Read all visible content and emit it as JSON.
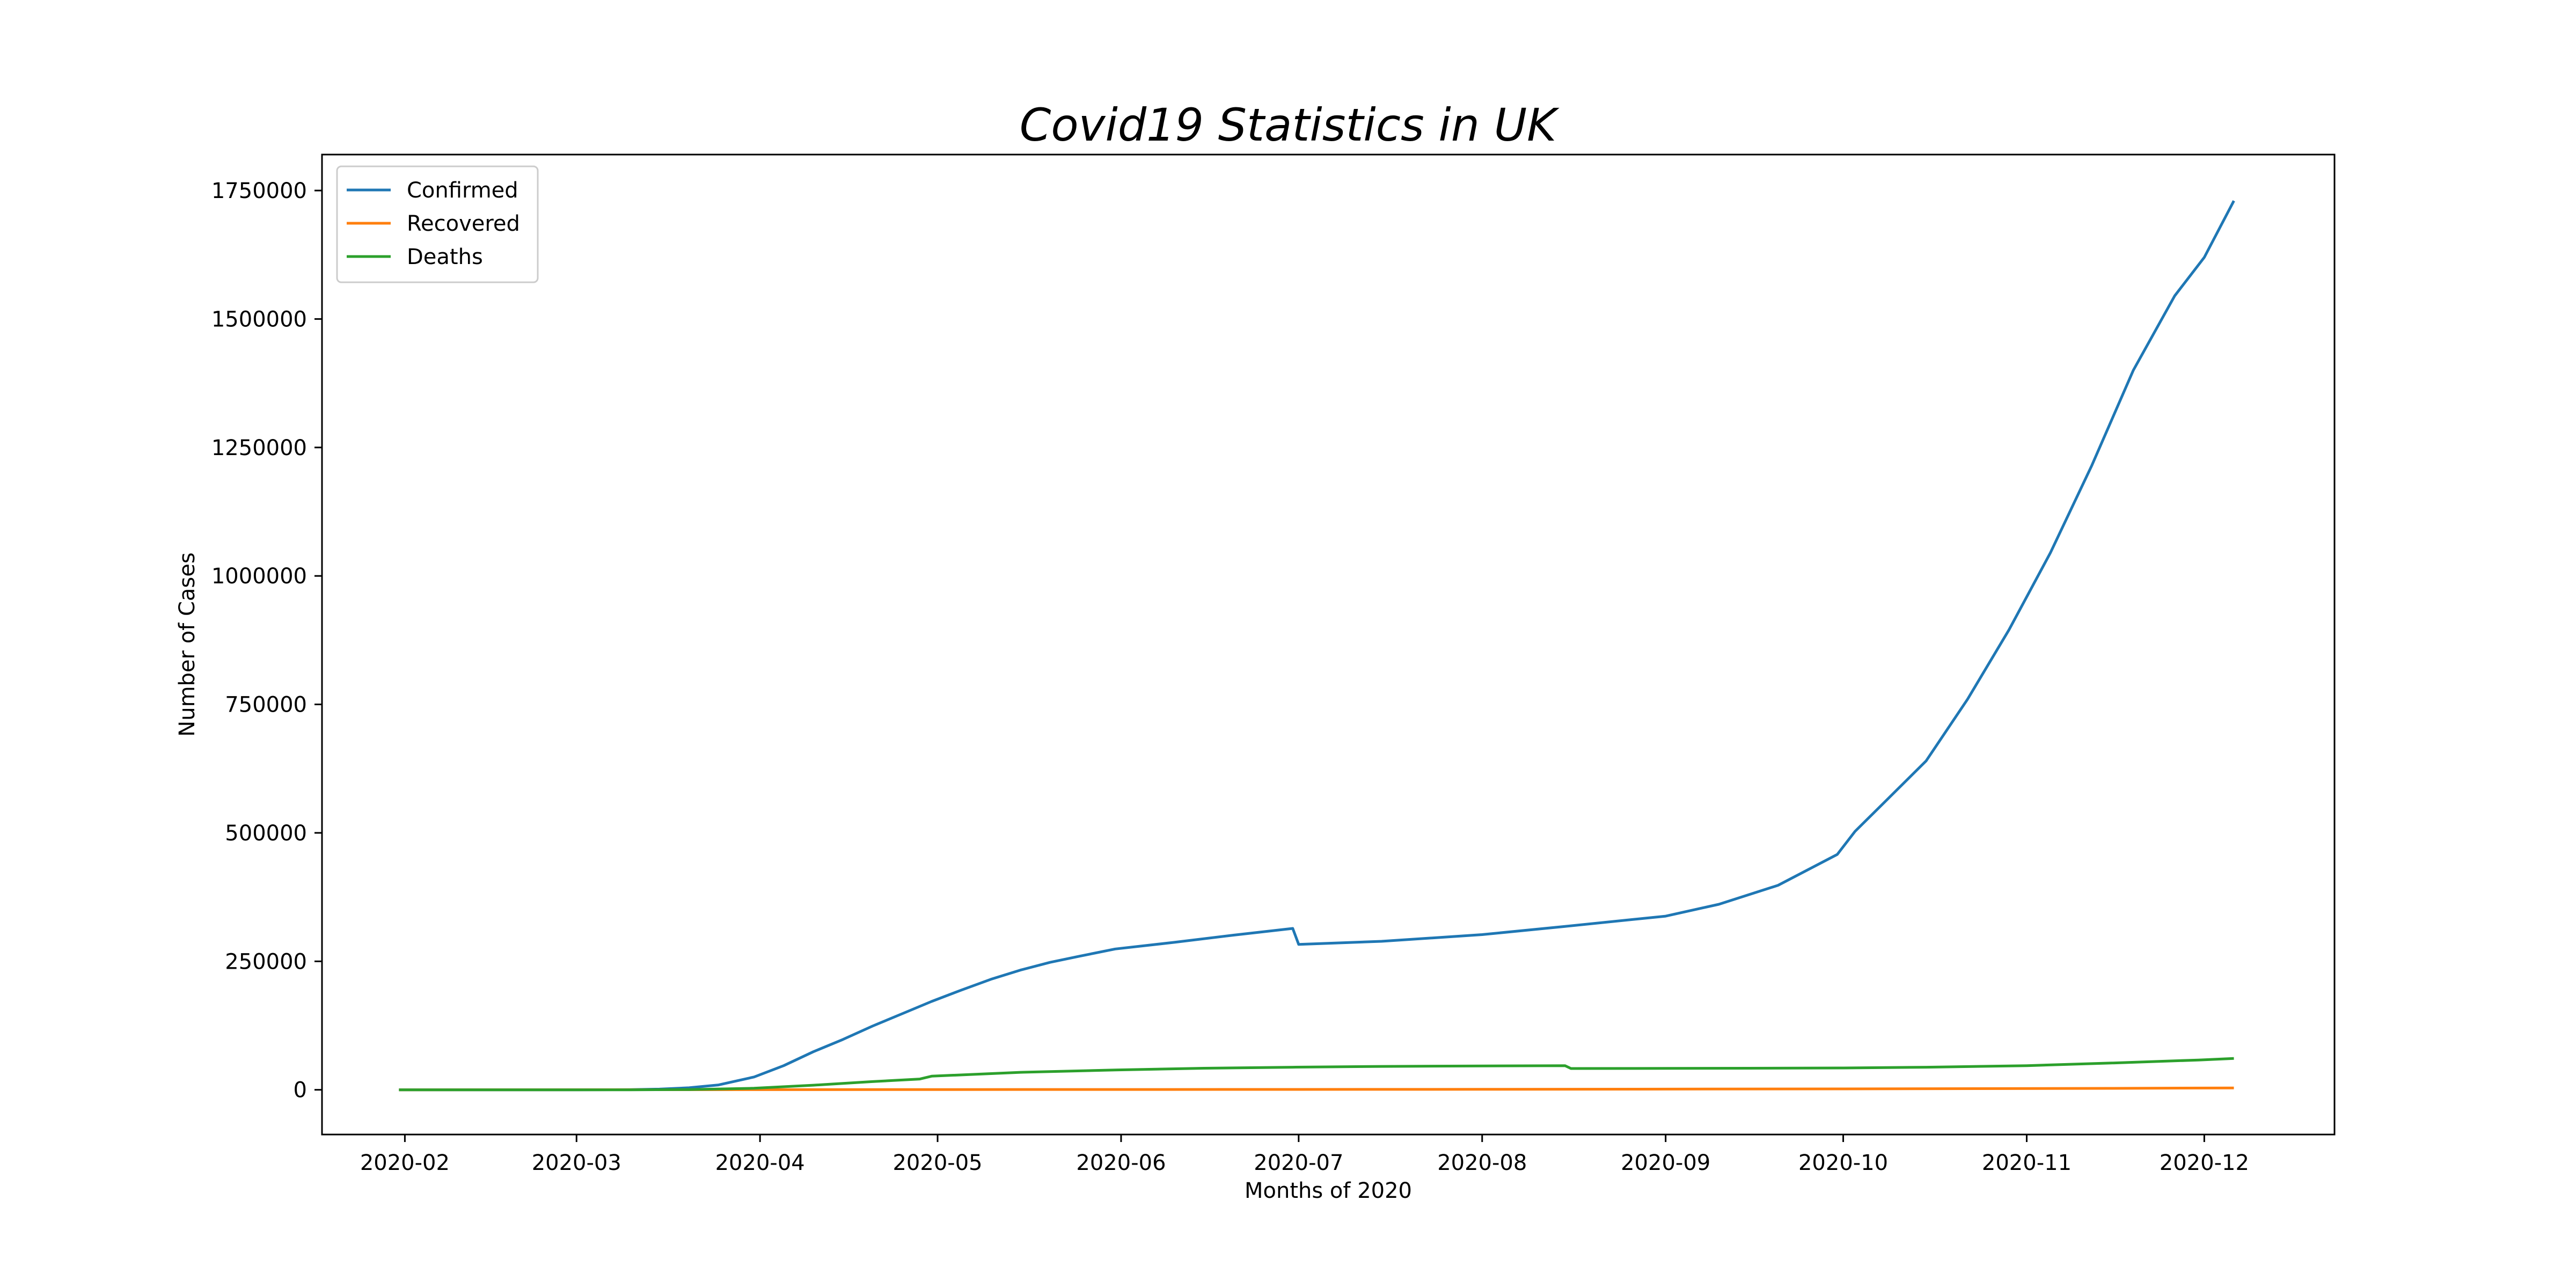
{
  "chart_data": {
    "type": "line",
    "title": "Covid19 Statistics in UK",
    "xlabel": "Months of 2020",
    "ylabel": "Number of Cases",
    "x_ticks": [
      "2020-02",
      "2020-03",
      "2020-04",
      "2020-05",
      "2020-06",
      "2020-07",
      "2020-08",
      "2020-09",
      "2020-10",
      "2020-11",
      "2020-12"
    ],
    "y_ticks": [
      0,
      250000,
      500000,
      750000,
      1000000,
      1250000,
      1500000,
      1750000
    ],
    "xlim": [
      "2020-01-18",
      "2020-12-23"
    ],
    "ylim": [
      -87000,
      1820000
    ],
    "grid": false,
    "legend": "upper-left",
    "series": [
      {
        "name": "Confirmed",
        "color": "#1f77b4",
        "points": [
          [
            "2020-01-31",
            0
          ],
          [
            "2020-03-01",
            0
          ],
          [
            "2020-03-10",
            300
          ],
          [
            "2020-03-15",
            1400
          ],
          [
            "2020-03-20",
            4000
          ],
          [
            "2020-03-25",
            9500
          ],
          [
            "2020-03-31",
            25000
          ],
          [
            "2020-04-05",
            47000
          ],
          [
            "2020-04-10",
            74000
          ],
          [
            "2020-04-15",
            98000
          ],
          [
            "2020-04-20",
            124000
          ],
          [
            "2020-04-25",
            148000
          ],
          [
            "2020-04-30",
            172000
          ],
          [
            "2020-05-05",
            194000
          ],
          [
            "2020-05-10",
            215000
          ],
          [
            "2020-05-15",
            233000
          ],
          [
            "2020-05-20",
            248000
          ],
          [
            "2020-05-25",
            260000
          ],
          [
            "2020-05-31",
            274000
          ],
          [
            "2020-06-10",
            287000
          ],
          [
            "2020-06-20",
            301000
          ],
          [
            "2020-06-30",
            314000
          ],
          [
            "2020-07-01",
            283000
          ],
          [
            "2020-07-15",
            289000
          ],
          [
            "2020-08-01",
            302000
          ],
          [
            "2020-08-15",
            318000
          ],
          [
            "2020-09-01",
            338000
          ],
          [
            "2020-09-10",
            361000
          ],
          [
            "2020-09-20",
            398000
          ],
          [
            "2020-09-30",
            458000
          ],
          [
            "2020-10-03",
            503000
          ],
          [
            "2020-10-08",
            560000
          ],
          [
            "2020-10-15",
            640000
          ],
          [
            "2020-10-22",
            760000
          ],
          [
            "2020-10-29",
            895000
          ],
          [
            "2020-11-05",
            1045000
          ],
          [
            "2020-11-12",
            1215000
          ],
          [
            "2020-11-19",
            1400000
          ],
          [
            "2020-11-26",
            1545000
          ],
          [
            "2020-12-01",
            1620000
          ],
          [
            "2020-12-06",
            1730000
          ]
        ]
      },
      {
        "name": "Recovered",
        "color": "#ff7f0e",
        "points": [
          [
            "2020-01-31",
            0
          ],
          [
            "2020-04-01",
            300
          ],
          [
            "2020-06-01",
            600
          ],
          [
            "2020-08-01",
            900
          ],
          [
            "2020-10-01",
            1800
          ],
          [
            "2020-11-15",
            2800
          ],
          [
            "2020-12-06",
            3600
          ]
        ]
      },
      {
        "name": "Deaths",
        "color": "#2ca02c",
        "points": [
          [
            "2020-01-31",
            0
          ],
          [
            "2020-03-10",
            0
          ],
          [
            "2020-03-20",
            500
          ],
          [
            "2020-03-31",
            3000
          ],
          [
            "2020-04-10",
            9000
          ],
          [
            "2020-04-20",
            16000
          ],
          [
            "2020-04-28",
            21000
          ],
          [
            "2020-04-30",
            26500
          ],
          [
            "2020-05-15",
            34000
          ],
          [
            "2020-05-31",
            38500
          ],
          [
            "2020-06-15",
            42000
          ],
          [
            "2020-06-30",
            44000
          ],
          [
            "2020-07-15",
            45500
          ],
          [
            "2020-08-01",
            46500
          ],
          [
            "2020-08-15",
            47000
          ],
          [
            "2020-08-16",
            41500
          ],
          [
            "2020-09-01",
            41700
          ],
          [
            "2020-09-15",
            42000
          ],
          [
            "2020-10-01",
            42500
          ],
          [
            "2020-10-15",
            44000
          ],
          [
            "2020-11-01",
            47000
          ],
          [
            "2020-11-15",
            52000
          ],
          [
            "2020-11-30",
            58000
          ],
          [
            "2020-12-06",
            61000
          ]
        ]
      }
    ]
  }
}
